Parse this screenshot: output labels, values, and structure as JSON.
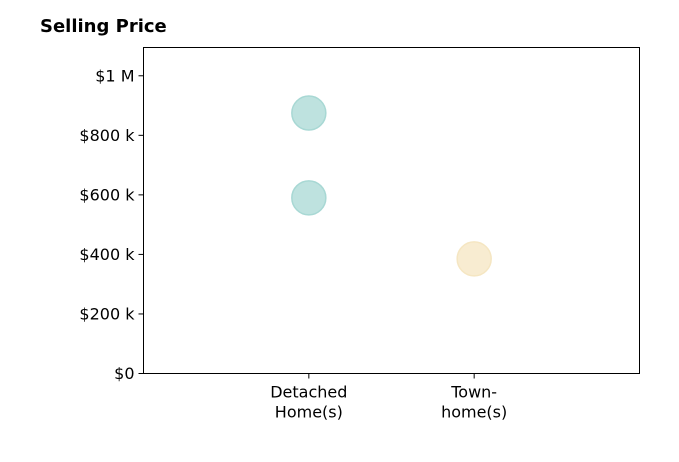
{
  "chart_data": {
    "type": "scatter",
    "title": "Selling Price",
    "xlabel": "",
    "ylabel": "",
    "categories": [
      [
        "Detached",
        "Home(s)"
      ],
      [
        "Town-",
        "home(s)"
      ]
    ],
    "points": [
      {
        "category": 0,
        "y": 875000,
        "color": "#a8d8d4"
      },
      {
        "category": 0,
        "y": 590000,
        "color": "#a8d8d4"
      },
      {
        "category": 1,
        "y": 385000,
        "color": "#f5e6c2"
      }
    ],
    "yticks": [
      {
        "value": 0,
        "label": "$0"
      },
      {
        "value": 200000,
        "label": "$200 k"
      },
      {
        "value": 400000,
        "label": "$400 k"
      },
      {
        "value": 600000,
        "label": "$600 k"
      },
      {
        "value": 800000,
        "label": "$800 k"
      },
      {
        "value": 1000000,
        "label": "$1 M"
      }
    ],
    "ylim": [
      0,
      1095000
    ],
    "xlim": [
      -1,
      2
    ],
    "grid": false,
    "legend": "none"
  }
}
